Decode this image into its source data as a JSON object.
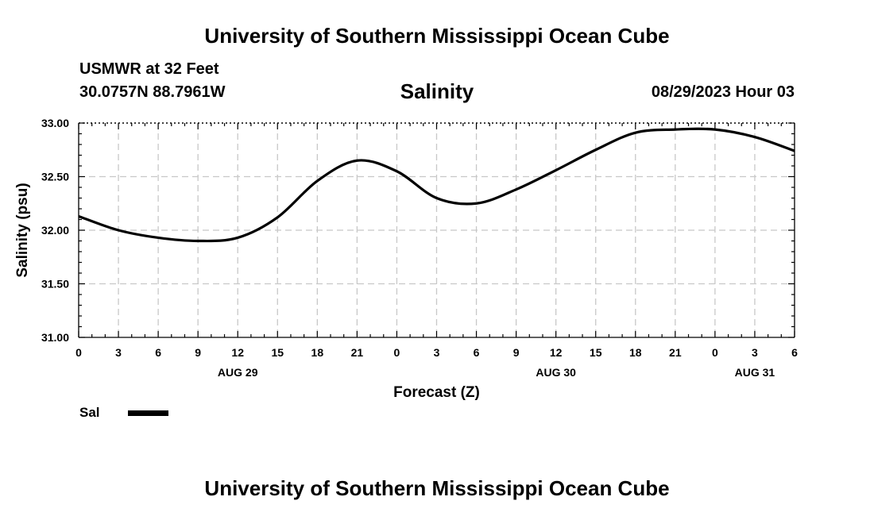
{
  "header": {
    "title": "University of Southern Mississippi Ocean Cube",
    "station": "USMWR at 32 Feet",
    "coords": "30.0757N  88.7961W",
    "variable": "Salinity",
    "datetime": "08/29/2023 Hour 03"
  },
  "footer": {
    "title": "University of Southern Mississippi Ocean Cube"
  },
  "legend": {
    "label": "Sal"
  },
  "chart_data": {
    "type": "line",
    "title": "Salinity",
    "xlabel": "Forecast (Z)",
    "ylabel": "Salinity (psu)",
    "xlim": [
      0,
      54
    ],
    "ylim": [
      31.0,
      33.0
    ],
    "grid": true,
    "x_tick_values": [
      0,
      3,
      6,
      9,
      12,
      15,
      18,
      21,
      24,
      27,
      30,
      33,
      36,
      39,
      42,
      45,
      48,
      51,
      54
    ],
    "x_tick_labels": [
      "0",
      "3",
      "6",
      "9",
      "12",
      "15",
      "18",
      "21",
      "0",
      "3",
      "6",
      "9",
      "12",
      "15",
      "18",
      "21",
      "0",
      "3",
      "6"
    ],
    "y_tick_values": [
      31.0,
      31.5,
      32.0,
      32.5,
      33.0
    ],
    "y_tick_labels": [
      "31.00",
      "31.50",
      "32.00",
      "32.50",
      "33.00"
    ],
    "date_labels": [
      {
        "x": 12,
        "label": "AUG 29"
      },
      {
        "x": 36,
        "label": "AUG 30"
      },
      {
        "x": 51,
        "label": "AUG 31"
      }
    ],
    "series": [
      {
        "name": "Sal",
        "color": "#000000",
        "x": [
          0,
          3,
          6,
          9,
          12,
          15,
          18,
          21,
          24,
          27,
          30,
          33,
          36,
          39,
          42,
          45,
          48,
          51,
          54
        ],
        "values": [
          32.13,
          32.0,
          31.93,
          31.9,
          31.93,
          32.12,
          32.46,
          32.65,
          32.55,
          32.3,
          32.25,
          32.38,
          32.56,
          32.75,
          32.91,
          32.94,
          32.94,
          32.87,
          32.74
        ]
      }
    ]
  }
}
